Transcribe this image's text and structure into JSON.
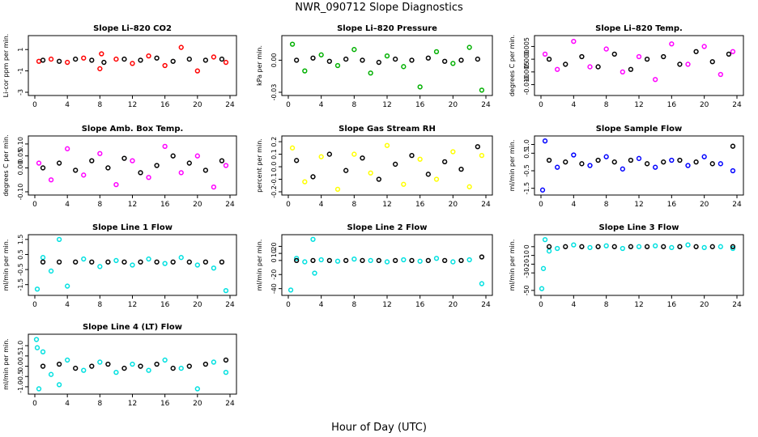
{
  "figure": {
    "title": "NWR_090712  Slope Diagnostics",
    "xlabel": "Hour of Day (UTC)"
  },
  "chart_data": [
    {
      "type": "scatter",
      "title": "Slope Li–820 CO2",
      "ylabel": "Li-cor ppm per min.",
      "xlim": [
        0,
        24
      ],
      "ylim": [
        -3,
        2
      ],
      "xticks": [
        "0",
        "4",
        "8",
        "12",
        "16",
        "20",
        "24"
      ],
      "yticks": [
        {
          "v": -3,
          "t": "-3"
        },
        {
          "v": -1,
          "t": "-1"
        },
        {
          "v": 1,
          "t": "1"
        }
      ],
      "color": "#ff0000",
      "series": [
        {
          "x": [
            0.5,
            2,
            4,
            6,
            8,
            8.2,
            10,
            12,
            14,
            16,
            18,
            20,
            22,
            23.5
          ],
          "y": [
            -0.1,
            0.1,
            -0.2,
            0.2,
            -0.8,
            0.6,
            0.1,
            -0.3,
            0.4,
            -0.5,
            1.2,
            -1.0,
            0.3,
            -0.2
          ]
        },
        {
          "x": [
            1,
            3,
            5,
            7,
            8.5,
            11,
            13,
            15,
            17,
            19,
            21,
            23
          ],
          "y": [
            0.0,
            -0.1,
            0.1,
            0.0,
            -0.2,
            0.1,
            0.0,
            0.2,
            -0.1,
            0.1,
            0.0,
            0.1
          ]
        }
      ]
    },
    {
      "type": "scatter",
      "title": "Slope Li–820 Pressure",
      "ylabel": "kPa per min.",
      "xlim": [
        0,
        24
      ],
      "ylim": [
        -0.03,
        0.02
      ],
      "xticks": [
        "0",
        "4",
        "8",
        "12",
        "16",
        "20",
        "24"
      ],
      "yticks": [
        {
          "v": -0.03,
          "t": "-0.03"
        },
        {
          "v": 0.0,
          "t": "0.00"
        }
      ],
      "color": "#00b000",
      "series": [
        {
          "x": [
            0.5,
            2,
            4,
            6,
            8,
            10,
            12,
            14,
            16,
            18,
            20,
            22,
            23.5
          ],
          "y": [
            0.015,
            -0.01,
            0.005,
            -0.005,
            0.01,
            -0.012,
            0.004,
            -0.006,
            -0.025,
            0.008,
            -0.003,
            0.012,
            -0.028
          ]
        },
        {
          "x": [
            1,
            3,
            5,
            7,
            9,
            11,
            13,
            15,
            17,
            19,
            21,
            23
          ],
          "y": [
            0.0,
            0.002,
            -0.001,
            0.001,
            0.0,
            -0.002,
            0.001,
            0.0,
            0.002,
            -0.001,
            0.0,
            0.001
          ]
        }
      ]
    },
    {
      "type": "scatter",
      "title": "Slope Li–820 Temp.",
      "ylabel": "degrees C per min.",
      "xlim": [
        0,
        24
      ],
      "ylim": [
        -0.013,
        0.008
      ],
      "xticks": [
        "0",
        "4",
        "8",
        "12",
        "16",
        "20",
        "24"
      ],
      "yticks": [
        {
          "v": -0.01,
          "t": "-0.010"
        },
        {
          "v": -0.005,
          "t": "-0.005"
        },
        {
          "v": 0.0,
          "t": "0.000"
        },
        {
          "v": 0.005,
          "t": "0.005"
        }
      ],
      "color": "#ff00ff",
      "series": [
        {
          "x": [
            0.5,
            2,
            4,
            6,
            8,
            10,
            12,
            14,
            16,
            18,
            20,
            22,
            23.5
          ],
          "y": [
            0.002,
            -0.004,
            0.007,
            -0.003,
            0.004,
            -0.005,
            0.001,
            -0.008,
            0.006,
            -0.002,
            0.005,
            -0.006,
            0.003
          ]
        },
        {
          "x": [
            1,
            3,
            5,
            7,
            9,
            11,
            13,
            15,
            17,
            19,
            21,
            23
          ],
          "y": [
            0.0,
            -0.002,
            0.001,
            -0.003,
            0.002,
            -0.004,
            0.0,
            0.001,
            -0.002,
            0.003,
            -0.001,
            0.002
          ]
        }
      ]
    },
    {
      "type": "scatter",
      "title": "Slope Amb. Box Temp.",
      "ylabel": "degrees C per min.",
      "xlim": [
        0,
        24
      ],
      "ylim": [
        -0.1,
        0.12
      ],
      "xticks": [
        "0",
        "4",
        "8",
        "12",
        "16",
        "20",
        "24"
      ],
      "yticks": [
        {
          "v": -0.1,
          "t": "-0.10"
        },
        {
          "v": 0.0,
          "t": "0.00"
        },
        {
          "v": 0.05,
          "t": "0.05"
        },
        {
          "v": 0.1,
          "t": "0.10"
        }
      ],
      "color": "#ff00ff",
      "series": [
        {
          "x": [
            0.5,
            2,
            4,
            6,
            8,
            10,
            12,
            14,
            16,
            18,
            20,
            22,
            23.5
          ],
          "y": [
            0.02,
            -0.05,
            0.08,
            -0.03,
            0.06,
            -0.07,
            0.03,
            -0.04,
            0.09,
            -0.02,
            0.05,
            -0.08,
            0.01
          ]
        },
        {
          "x": [
            1,
            3,
            5,
            7,
            9,
            11,
            13,
            15,
            17,
            19,
            21,
            23
          ],
          "y": [
            0.0,
            0.02,
            -0.01,
            0.03,
            0.0,
            0.04,
            -0.02,
            0.01,
            0.05,
            0.02,
            -0.01,
            0.03
          ]
        }
      ]
    },
    {
      "type": "scatter",
      "title": "Slope Gas Stream RH",
      "ylabel": "percent per min.",
      "xlim": [
        0,
        24
      ],
      "ylim": [
        -0.2,
        0.22
      ],
      "xticks": [
        "0",
        "4",
        "8",
        "12",
        "16",
        "20",
        "24"
      ],
      "yticks": [
        {
          "v": -0.2,
          "t": "-0.2"
        },
        {
          "v": -0.1,
          "t": "-0.1"
        },
        {
          "v": 0.0,
          "t": "0.0"
        },
        {
          "v": 0.1,
          "t": "0.1"
        },
        {
          "v": 0.2,
          "t": "0.2"
        }
      ],
      "color": "#ffff00",
      "series": [
        {
          "x": [
            0.5,
            2,
            4,
            6,
            8,
            10,
            12,
            14,
            16,
            18,
            20,
            22,
            23.5
          ],
          "y": [
            0.15,
            -0.12,
            0.08,
            -0.18,
            0.1,
            -0.05,
            0.17,
            -0.14,
            0.06,
            -0.1,
            0.12,
            -0.16,
            0.09
          ]
        },
        {
          "x": [
            1,
            3,
            5,
            7,
            9,
            11,
            13,
            15,
            17,
            19,
            21,
            23
          ],
          "y": [
            0.05,
            -0.08,
            0.1,
            -0.03,
            0.07,
            -0.1,
            0.02,
            0.09,
            -0.06,
            0.04,
            -0.02,
            0.16
          ]
        }
      ]
    },
    {
      "type": "scatter",
      "title": "Slope Sample Flow",
      "ylabel": "ml/min per min.",
      "xlim": [
        0,
        24
      ],
      "ylim": [
        -1.7,
        1.3
      ],
      "xticks": [
        "0",
        "4",
        "8",
        "12",
        "16",
        "20",
        "24"
      ],
      "yticks": [
        {
          "v": -1.5,
          "t": "-1.5"
        },
        {
          "v": -0.5,
          "t": "-0.5"
        },
        {
          "v": 0.5,
          "t": "0.5"
        },
        {
          "v": 1.0,
          "t": "1.0"
        }
      ],
      "color": "#0000ff",
      "series": [
        {
          "x": [
            0.2,
            0.5,
            2,
            4,
            6,
            8,
            10,
            12,
            14,
            16,
            18,
            20,
            22,
            23.5
          ],
          "y": [
            -1.6,
            1.2,
            -0.3,
            0.4,
            -0.2,
            0.3,
            -0.4,
            0.2,
            -0.3,
            0.1,
            -0.2,
            0.3,
            -0.1,
            -0.5
          ]
        },
        {
          "x": [
            1,
            3,
            5,
            7,
            9,
            11,
            13,
            15,
            17,
            19,
            21,
            23.5
          ],
          "y": [
            0.1,
            0.0,
            -0.1,
            0.1,
            0.0,
            0.1,
            -0.1,
            0.0,
            0.1,
            0.0,
            -0.1,
            0.9
          ]
        }
      ]
    },
    {
      "type": "scatter",
      "title": "Slope Line 1 Flow",
      "ylabel": "ml/min per min.",
      "xlim": [
        0,
        24
      ],
      "ylim": [
        -2.0,
        1.6
      ],
      "xticks": [
        "0",
        "4",
        "8",
        "12",
        "16",
        "20",
        "24"
      ],
      "yticks": [
        {
          "v": -1.5,
          "t": "-1.5"
        },
        {
          "v": -0.5,
          "t": "-0.5"
        },
        {
          "v": 0.5,
          "t": "0.5"
        },
        {
          "v": 1.5,
          "t": "1.5"
        }
      ],
      "color": "#00e0e0",
      "series": [
        {
          "x": [
            0.3,
            1,
            2,
            3,
            4,
            6,
            8,
            10,
            12,
            14,
            16,
            18,
            20,
            22,
            23.5
          ],
          "y": [
            -1.8,
            0.3,
            -0.6,
            1.5,
            -1.6,
            0.2,
            -0.3,
            0.1,
            -0.2,
            0.2,
            -0.1,
            0.3,
            -0.2,
            -0.4,
            -1.9
          ]
        },
        {
          "x": [
            1,
            3,
            5,
            7,
            9,
            11,
            13,
            15,
            17,
            19,
            21,
            23
          ],
          "y": [
            0.0,
            0.0,
            0.0,
            0.0,
            0.0,
            0.0,
            0.0,
            0.0,
            0.0,
            0.0,
            0.0,
            0.0
          ]
        }
      ]
    },
    {
      "type": "scatter",
      "title": "Slope Line 2 Flow",
      "ylabel": "ml/min per min.",
      "xlim": [
        0,
        24
      ],
      "ylim": [
        -45,
        32
      ],
      "xticks": [
        "0",
        "4",
        "8",
        "12",
        "16",
        "20",
        "24"
      ],
      "yticks": [
        {
          "v": -40,
          "t": "-40"
        },
        {
          "v": -20,
          "t": "-20"
        },
        {
          "v": 0,
          "t": "0"
        },
        {
          "v": 10,
          "t": "10"
        },
        {
          "v": 20,
          "t": "20"
        }
      ],
      "color": "#00e0e0",
      "series": [
        {
          "x": [
            0.3,
            1,
            2,
            3,
            3.2,
            4,
            6,
            8,
            10,
            12,
            14,
            16,
            18,
            20,
            22,
            23.5
          ],
          "y": [
            -42,
            3,
            -2,
            30,
            -18,
            1,
            -1,
            2,
            0,
            -2,
            1,
            -1,
            3,
            -2,
            1,
            -33
          ]
        },
        {
          "x": [
            1,
            3,
            5,
            7,
            9,
            11,
            13,
            15,
            17,
            19,
            21,
            23.5
          ],
          "y": [
            0,
            0,
            0,
            0,
            0,
            0,
            0,
            0,
            0,
            0,
            0,
            5
          ]
        }
      ]
    },
    {
      "type": "scatter",
      "title": "Slope Line 3 Flow",
      "ylabel": "ml/min per min.",
      "xlim": [
        0,
        24
      ],
      "ylim": [
        -52,
        10
      ],
      "xticks": [
        "0",
        "4",
        "8",
        "12",
        "16",
        "20",
        "24"
      ],
      "yticks": [
        {
          "v": -50,
          "t": "-50"
        },
        {
          "v": -30,
          "t": "-30"
        },
        {
          "v": -20,
          "t": "-20"
        },
        {
          "v": -10,
          "t": "-10"
        },
        {
          "v": 0,
          "t": "0"
        }
      ],
      "color": "#00e0e0",
      "series": [
        {
          "x": [
            0.1,
            0.3,
            0.5,
            1,
            2,
            4,
            6,
            8,
            10,
            12,
            14,
            16,
            18,
            20,
            22,
            23.5
          ],
          "y": [
            -48,
            -25,
            8,
            -5,
            -2,
            2,
            -1,
            1,
            -2,
            0,
            1,
            -1,
            2,
            -1,
            0,
            -2
          ]
        },
        {
          "x": [
            1,
            3,
            5,
            7,
            9,
            11,
            13,
            15,
            17,
            19,
            21,
            23.5
          ],
          "y": [
            0,
            0,
            0,
            0,
            0,
            0,
            0,
            0,
            0,
            0,
            0,
            0
          ]
        }
      ]
    },
    {
      "type": "scatter",
      "title": "Slope Line 4 (LT) Flow",
      "ylabel": "ml/min per min.",
      "xlim": [
        0,
        24
      ],
      "ylim": [
        -1.2,
        1.4
      ],
      "xticks": [
        "0",
        "4",
        "8",
        "12",
        "16",
        "20",
        "24"
      ],
      "yticks": [
        {
          "v": -1.0,
          "t": "-1.0"
        },
        {
          "v": -0.5,
          "t": "-0.5"
        },
        {
          "v": 0.0,
          "t": "0.0"
        },
        {
          "v": 0.5,
          "t": "0.5"
        },
        {
          "v": 1.0,
          "t": "1.0"
        }
      ],
      "color": "#00e0e0",
      "series": [
        {
          "x": [
            0.2,
            0.3,
            0.5,
            1,
            2,
            3,
            4,
            6,
            8,
            10,
            12,
            14,
            16,
            18,
            20,
            22,
            23.5
          ],
          "y": [
            1.3,
            0.9,
            -1.1,
            0.7,
            -0.4,
            -0.9,
            0.3,
            -0.2,
            0.2,
            -0.3,
            0.1,
            -0.2,
            0.3,
            -0.1,
            -1.1,
            0.2,
            -0.3
          ]
        },
        {
          "x": [
            1,
            3,
            5,
            7,
            9,
            11,
            13,
            15,
            17,
            19,
            21,
            23.5
          ],
          "y": [
            0.0,
            0.1,
            -0.1,
            0.0,
            0.1,
            -0.1,
            0.0,
            0.1,
            -0.1,
            0.0,
            0.1,
            0.3
          ]
        }
      ]
    }
  ]
}
